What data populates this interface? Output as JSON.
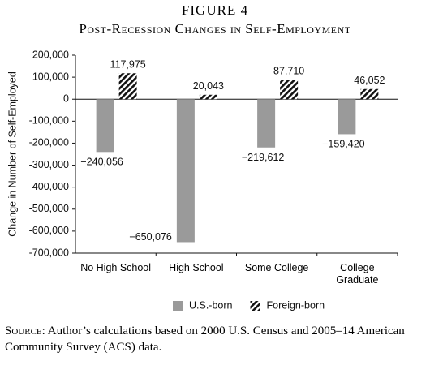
{
  "figure_label": "FIGURE 4",
  "source": {
    "label": "Source:",
    "text": "Author’s calculations based on 2000 U.S. Census and 2005–14 American Community Survey (ACS) data."
  },
  "chart_data": {
    "type": "bar",
    "title": "Post-Recession Changes in Self-Employment",
    "y_label": "Change in Number of Self-Employed",
    "categories": [
      "No High School",
      "High School",
      "Some College",
      "College Graduate"
    ],
    "series": [
      {
        "name": "U.S.-born",
        "color": "#9a9a9a",
        "values": [
          -240056,
          -650076,
          -219612,
          -159420
        ],
        "value_labels": [
          "−240,056",
          "−650,076",
          "−219,612",
          "−159,420"
        ]
      },
      {
        "name": "Foreign-born",
        "color": "#111111",
        "pattern": "hatch",
        "values": [
          117975,
          20043,
          87710,
          46052
        ],
        "value_labels": [
          "117,975",
          "20,043",
          "87,710",
          "46,052"
        ]
      }
    ],
    "ylim": [
      -700000,
      200000
    ],
    "yticks": [
      {
        "value": 200000,
        "label": "200,000"
      },
      {
        "value": 100000,
        "label": "100,000"
      },
      0,
      {
        "value": -100000,
        "label": "-100,000"
      },
      {
        "value": -200000,
        "label": "-200,000"
      },
      {
        "value": -300000,
        "label": "-300,000"
      },
      {
        "value": -400000,
        "label": "-400,000"
      },
      {
        "value": -500000,
        "label": "-500,000"
      },
      {
        "value": -600000,
        "label": "-600,000"
      },
      {
        "value": -700000,
        "label": "-700,000"
      }
    ],
    "legend": "bottom"
  }
}
